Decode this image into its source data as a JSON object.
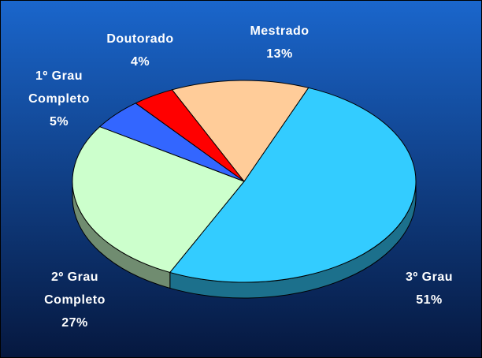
{
  "chart_data": {
    "type": "pie",
    "categories": [
      "3º Grau",
      "2º Grau Completo",
      "1º Grau Completo",
      "Doutorado",
      "Mestrado"
    ],
    "values": [
      51,
      27,
      5,
      4,
      13
    ],
    "value_labels": [
      "51%",
      "27%",
      "5%",
      "4%",
      "13%"
    ],
    "colors": [
      "#33ccff",
      "#ccffcc",
      "#3366ff",
      "#ff0000",
      "#ffcc99"
    ]
  }
}
